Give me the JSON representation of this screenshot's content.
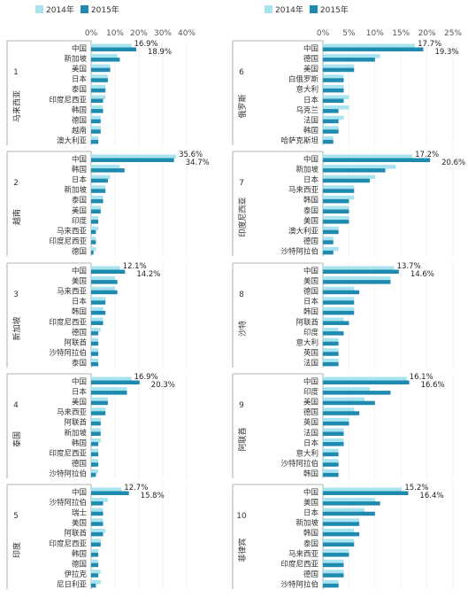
{
  "legend": [
    {
      "name": "2014年",
      "color": "#a8e3f0"
    },
    {
      "name": "2015年",
      "color": "#1f8ab0"
    }
  ],
  "chart_data": [
    {
      "type": "bar",
      "orientation": "horizontal",
      "panel": "1",
      "country": "马来西亚",
      "xlim": [
        0,
        40
      ],
      "ticks": [
        "0%",
        "10%",
        "20%",
        "30%",
        "40%"
      ],
      "categories": [
        "中国",
        "新加坡",
        "美国",
        "日本",
        "泰国",
        "印度尼西亚",
        "韩国",
        "德国",
        "越南",
        "澳大利亚"
      ],
      "series": [
        {
          "name": "2014年",
          "values": [
            16.9,
            11,
            8,
            7,
            6,
            6,
            5,
            4,
            4,
            3
          ]
        },
        {
          "name": "2015年",
          "values": [
            18.9,
            12,
            8,
            7,
            6,
            5,
            5,
            4,
            4,
            3
          ]
        }
      ],
      "labels": [
        "16.9%",
        "18.9%"
      ]
    },
    {
      "type": "bar",
      "orientation": "horizontal",
      "panel": "2",
      "country": "越南",
      "xlim": [
        0,
        40
      ],
      "ticks": [
        "0%",
        "10%",
        "20%",
        "30%",
        "40%"
      ],
      "categories": [
        "中国",
        "韩国",
        "日本",
        "新加坡",
        "泰国",
        "美国",
        "印度",
        "马来西亚",
        "印度尼西亚",
        "德国"
      ],
      "series": [
        {
          "name": "2014年",
          "values": [
            35.6,
            12,
            8,
            6,
            5,
            4,
            3,
            3,
            2,
            2
          ]
        },
        {
          "name": "2015年",
          "values": [
            34.7,
            14,
            7,
            6,
            5,
            4,
            3,
            2,
            2,
            1
          ]
        }
      ],
      "labels": [
        "35.6%",
        "34.7%"
      ]
    },
    {
      "type": "bar",
      "orientation": "horizontal",
      "panel": "3",
      "country": "新加坡",
      "xlim": [
        0,
        40
      ],
      "ticks": [
        "0%",
        "10%",
        "20%",
        "30%",
        "40%"
      ],
      "categories": [
        "中国",
        "美国",
        "马来西亚",
        "日本",
        "韩国",
        "印度尼西亚",
        "德国",
        "阿联酋",
        "沙特阿拉伯",
        "泰国"
      ],
      "series": [
        {
          "name": "2014年",
          "values": [
            12.1,
            10,
            10,
            6,
            5,
            5,
            4,
            3,
            3,
            3
          ]
        },
        {
          "name": "2015年",
          "values": [
            14.2,
            11,
            11,
            6,
            6,
            5,
            3,
            3,
            3,
            3
          ]
        }
      ],
      "labels": [
        "12.1%",
        "14.2%"
      ]
    },
    {
      "type": "bar",
      "orientation": "horizontal",
      "panel": "4",
      "country": "泰国",
      "xlim": [
        0,
        40
      ],
      "ticks": [
        "0%",
        "10%",
        "20%",
        "30%",
        "40%"
      ],
      "categories": [
        "中国",
        "日本",
        "美国",
        "马来西亚",
        "阿联酋",
        "新加坡",
        "韩国",
        "印度尼西亚",
        "德国",
        "沙特阿拉伯"
      ],
      "series": [
        {
          "name": "2014年",
          "values": [
            16.9,
            15,
            7,
            6,
            4,
            4,
            4,
            3,
            3,
            3
          ]
        },
        {
          "name": "2015年",
          "values": [
            20.3,
            15,
            7,
            6,
            4,
            4,
            3,
            3,
            3,
            2
          ]
        }
      ],
      "labels": [
        "16.9%",
        "20.3%"
      ]
    },
    {
      "type": "bar",
      "orientation": "horizontal",
      "panel": "5",
      "country": "印度",
      "xlim": [
        0,
        40
      ],
      "ticks": [
        "0%",
        "10%",
        "20%",
        "30%",
        "40%"
      ],
      "categories": [
        "中国",
        "沙特阿拉伯",
        "瑞士",
        "美国",
        "阿联酋",
        "印度尼西亚",
        "韩国",
        "德国",
        "伊拉克",
        "尼日利亚"
      ],
      "series": [
        {
          "name": "2014年",
          "values": [
            12.7,
            7,
            5,
            5,
            6,
            4,
            3,
            3,
            4,
            4
          ]
        },
        {
          "name": "2015年",
          "values": [
            15.8,
            5,
            5,
            5,
            5,
            4,
            3,
            3,
            3,
            2
          ]
        }
      ],
      "labels": [
        "12.7%",
        "15.8%"
      ]
    },
    {
      "type": "bar",
      "orientation": "horizontal",
      "panel": "6",
      "country": "俄罗斯",
      "xlim": [
        0,
        25
      ],
      "ticks": [
        "0%",
        "5%",
        "10%",
        "15%",
        "20%",
        "25%"
      ],
      "categories": [
        "中国",
        "德国",
        "美国",
        "白俄罗斯",
        "意大利",
        "日本",
        "乌克兰",
        "法国",
        "韩国",
        "哈萨克斯坦"
      ],
      "series": [
        {
          "name": "2014年",
          "values": [
            17.7,
            11,
            6,
            4,
            4,
            5,
            5,
            4,
            3,
            2
          ]
        },
        {
          "name": "2015年",
          "values": [
            19.3,
            10,
            6,
            4,
            4,
            4,
            3,
            3,
            3,
            2
          ]
        }
      ],
      "labels": [
        "17.7%",
        "19.3%"
      ]
    },
    {
      "type": "bar",
      "orientation": "horizontal",
      "panel": "7",
      "country": "印度尼西亚",
      "xlim": [
        0,
        25
      ],
      "ticks": [
        "0%",
        "5%",
        "10%",
        "15%",
        "20%",
        "25%"
      ],
      "categories": [
        "中国",
        "新加坡",
        "日本",
        "马来西亚",
        "韩国",
        "泰国",
        "美国",
        "澳大利亚",
        "德国",
        "沙特阿拉伯"
      ],
      "series": [
        {
          "name": "2014年",
          "values": [
            17.2,
            14,
            10,
            6,
            6,
            5,
            5,
            3,
            2,
            3
          ]
        },
        {
          "name": "2015年",
          "values": [
            20.6,
            12,
            9,
            6,
            5,
            5,
            5,
            3,
            2,
            2
          ]
        }
      ],
      "labels": [
        "17.2%",
        "20.6%"
      ]
    },
    {
      "type": "bar",
      "orientation": "horizontal",
      "panel": "8",
      "country": "沙特",
      "xlim": [
        0,
        25
      ],
      "ticks": [
        "0%",
        "5%",
        "10%",
        "15%",
        "20%",
        "25%"
      ],
      "categories": [
        "中国",
        "美国",
        "德国",
        "日本",
        "韩国",
        "阿联酋",
        "印度",
        "意大利",
        "英国",
        "法国"
      ],
      "series": [
        {
          "name": "2014年",
          "values": [
            13.7,
            13,
            6,
            6,
            6,
            4,
            3,
            3,
            3,
            3
          ]
        },
        {
          "name": "2015年",
          "values": [
            14.6,
            13,
            7,
            6,
            6,
            5,
            4,
            3,
            3,
            3
          ]
        }
      ],
      "labels": [
        "13.7%",
        "14.6%"
      ]
    },
    {
      "type": "bar",
      "orientation": "horizontal",
      "panel": "9",
      "country": "阿联酋",
      "xlim": [
        0,
        25
      ],
      "ticks": [
        "0%",
        "5%",
        "10%",
        "15%",
        "20%",
        "25%"
      ],
      "categories": [
        "中国",
        "印度",
        "美国",
        "德国",
        "英国",
        "法国",
        "日本",
        "意大利",
        "沙特阿拉伯",
        "韩国"
      ],
      "series": [
        {
          "name": "2014年",
          "values": [
            16.1,
            9,
            8,
            6,
            5,
            4,
            4,
            3,
            3,
            3
          ]
        },
        {
          "name": "2015年",
          "values": [
            16.6,
            13,
            10,
            7,
            5,
            4,
            4,
            3,
            3,
            3
          ]
        }
      ],
      "labels": [
        "16.1%",
        "16.6%"
      ]
    },
    {
      "type": "bar",
      "orientation": "horizontal",
      "panel": "10",
      "country": "菲律宾",
      "xlim": [
        0,
        25
      ],
      "ticks": [
        "0%",
        "5%",
        "10%",
        "15%",
        "20%",
        "25%"
      ],
      "categories": [
        "中国",
        "美国",
        "日本",
        "新加坡",
        "韩国",
        "泰国",
        "马来西亚",
        "印度尼西亚",
        "德国",
        "沙特阿拉伯"
      ],
      "series": [
        {
          "name": "2014年",
          "values": [
            15.2,
            10,
            8,
            7,
            6,
            6,
            5,
            4,
            4,
            3
          ]
        },
        {
          "name": "2015年",
          "values": [
            16.4,
            11,
            10,
            7,
            7,
            6,
            5,
            4,
            4,
            3
          ]
        }
      ],
      "labels": [
        "15.2%",
        "16.4%"
      ]
    }
  ]
}
